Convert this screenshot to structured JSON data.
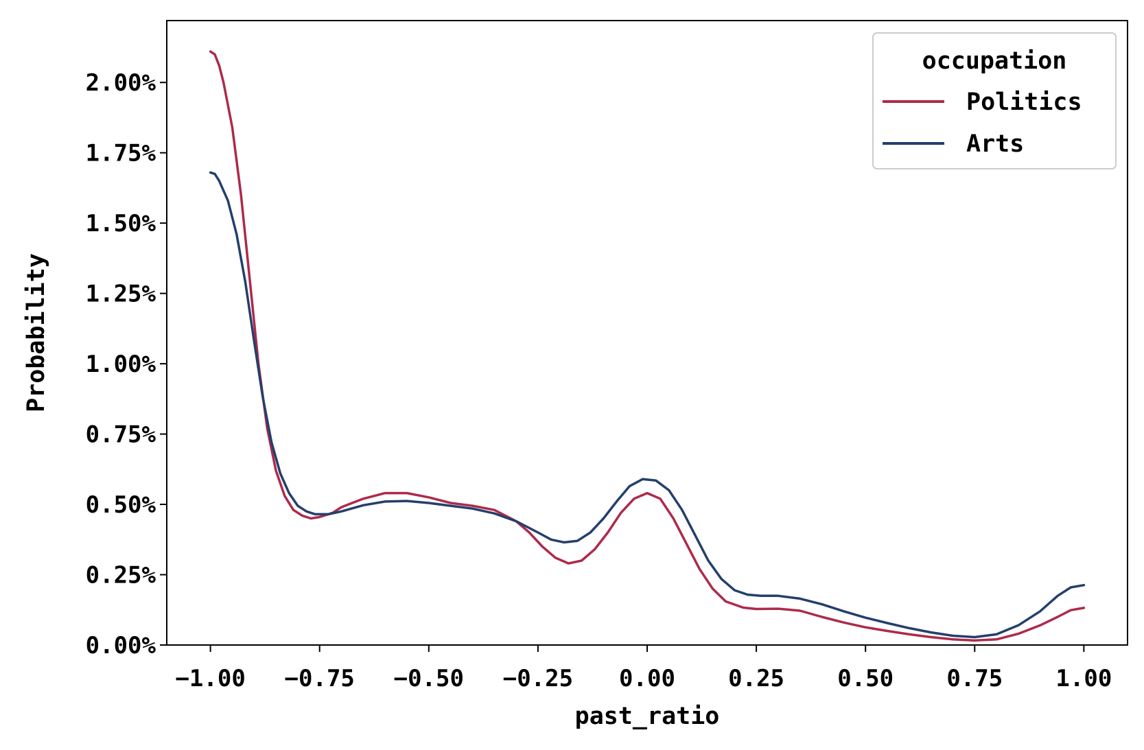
{
  "chart_data": {
    "type": "line",
    "title": "",
    "xlabel": "past_ratio",
    "ylabel": "Probability",
    "xlim": [
      -1.1,
      1.1
    ],
    "ylim": [
      0,
      2.22
    ],
    "xticks": [
      -1.0,
      -0.75,
      -0.5,
      -0.25,
      0.0,
      0.25,
      0.5,
      0.75,
      1.0
    ],
    "xtick_labels": [
      "−1.00",
      "−0.75",
      "−0.50",
      "−0.25",
      "0.00",
      "0.25",
      "0.50",
      "0.75",
      "1.00"
    ],
    "yticks": [
      0,
      0.25,
      0.5,
      0.75,
      1.0,
      1.25,
      1.5,
      1.75,
      2.0
    ],
    "ytick_labels": [
      "0.00%",
      "0.25%",
      "0.50%",
      "0.75%",
      "1.00%",
      "1.25%",
      "1.50%",
      "1.75%",
      "2.00%"
    ],
    "grid": false,
    "legend": {
      "title": "occupation",
      "placement": "top-right"
    },
    "series": [
      {
        "name": "Politics",
        "color": "#ad2a4b",
        "points": [
          [
            -1.0,
            2.11
          ],
          [
            -0.99,
            2.1
          ],
          [
            -0.98,
            2.06
          ],
          [
            -0.97,
            2.0
          ],
          [
            -0.95,
            1.84
          ],
          [
            -0.93,
            1.6
          ],
          [
            -0.91,
            1.3
          ],
          [
            -0.89,
            1.0
          ],
          [
            -0.87,
            0.77
          ],
          [
            -0.85,
            0.62
          ],
          [
            -0.83,
            0.53
          ],
          [
            -0.81,
            0.48
          ],
          [
            -0.79,
            0.46
          ],
          [
            -0.77,
            0.45
          ],
          [
            -0.75,
            0.455
          ],
          [
            -0.72,
            0.47
          ],
          [
            -0.7,
            0.49
          ],
          [
            -0.65,
            0.52
          ],
          [
            -0.6,
            0.54
          ],
          [
            -0.55,
            0.54
          ],
          [
            -0.5,
            0.525
          ],
          [
            -0.45,
            0.505
          ],
          [
            -0.4,
            0.495
          ],
          [
            -0.35,
            0.48
          ],
          [
            -0.3,
            0.44
          ],
          [
            -0.27,
            0.4
          ],
          [
            -0.24,
            0.35
          ],
          [
            -0.21,
            0.31
          ],
          [
            -0.18,
            0.29
          ],
          [
            -0.15,
            0.3
          ],
          [
            -0.12,
            0.34
          ],
          [
            -0.09,
            0.4
          ],
          [
            -0.06,
            0.47
          ],
          [
            -0.03,
            0.52
          ],
          [
            0.0,
            0.54
          ],
          [
            0.03,
            0.52
          ],
          [
            0.06,
            0.45
          ],
          [
            0.09,
            0.36
          ],
          [
            0.12,
            0.27
          ],
          [
            0.15,
            0.2
          ],
          [
            0.18,
            0.155
          ],
          [
            0.22,
            0.133
          ],
          [
            0.25,
            0.128
          ],
          [
            0.3,
            0.129
          ],
          [
            0.35,
            0.122
          ],
          [
            0.4,
            0.1
          ],
          [
            0.45,
            0.08
          ],
          [
            0.5,
            0.063
          ],
          [
            0.55,
            0.05
          ],
          [
            0.6,
            0.038
          ],
          [
            0.65,
            0.028
          ],
          [
            0.7,
            0.02
          ],
          [
            0.75,
            0.016
          ],
          [
            0.8,
            0.02
          ],
          [
            0.85,
            0.04
          ],
          [
            0.9,
            0.07
          ],
          [
            0.94,
            0.1
          ],
          [
            0.97,
            0.124
          ],
          [
            1.0,
            0.132
          ]
        ]
      },
      {
        "name": "Arts",
        "color": "#243f6c",
        "points": [
          [
            -1.0,
            1.68
          ],
          [
            -0.99,
            1.675
          ],
          [
            -0.98,
            1.65
          ],
          [
            -0.96,
            1.58
          ],
          [
            -0.94,
            1.46
          ],
          [
            -0.92,
            1.29
          ],
          [
            -0.9,
            1.08
          ],
          [
            -0.88,
            0.88
          ],
          [
            -0.86,
            0.72
          ],
          [
            -0.84,
            0.61
          ],
          [
            -0.82,
            0.54
          ],
          [
            -0.8,
            0.495
          ],
          [
            -0.78,
            0.475
          ],
          [
            -0.76,
            0.465
          ],
          [
            -0.73,
            0.465
          ],
          [
            -0.7,
            0.475
          ],
          [
            -0.65,
            0.497
          ],
          [
            -0.6,
            0.51
          ],
          [
            -0.55,
            0.512
          ],
          [
            -0.5,
            0.505
          ],
          [
            -0.45,
            0.495
          ],
          [
            -0.4,
            0.485
          ],
          [
            -0.35,
            0.468
          ],
          [
            -0.3,
            0.44
          ],
          [
            -0.25,
            0.4
          ],
          [
            -0.22,
            0.375
          ],
          [
            -0.19,
            0.365
          ],
          [
            -0.16,
            0.37
          ],
          [
            -0.13,
            0.4
          ],
          [
            -0.1,
            0.45
          ],
          [
            -0.07,
            0.51
          ],
          [
            -0.04,
            0.565
          ],
          [
            -0.01,
            0.59
          ],
          [
            0.02,
            0.585
          ],
          [
            0.05,
            0.55
          ],
          [
            0.08,
            0.48
          ],
          [
            0.11,
            0.39
          ],
          [
            0.14,
            0.3
          ],
          [
            0.17,
            0.235
          ],
          [
            0.2,
            0.195
          ],
          [
            0.23,
            0.179
          ],
          [
            0.26,
            0.175
          ],
          [
            0.3,
            0.175
          ],
          [
            0.35,
            0.165
          ],
          [
            0.4,
            0.145
          ],
          [
            0.45,
            0.12
          ],
          [
            0.5,
            0.097
          ],
          [
            0.55,
            0.078
          ],
          [
            0.6,
            0.06
          ],
          [
            0.65,
            0.045
          ],
          [
            0.7,
            0.033
          ],
          [
            0.75,
            0.028
          ],
          [
            0.8,
            0.038
          ],
          [
            0.85,
            0.07
          ],
          [
            0.9,
            0.12
          ],
          [
            0.94,
            0.175
          ],
          [
            0.97,
            0.205
          ],
          [
            1.0,
            0.213
          ]
        ]
      }
    ]
  }
}
